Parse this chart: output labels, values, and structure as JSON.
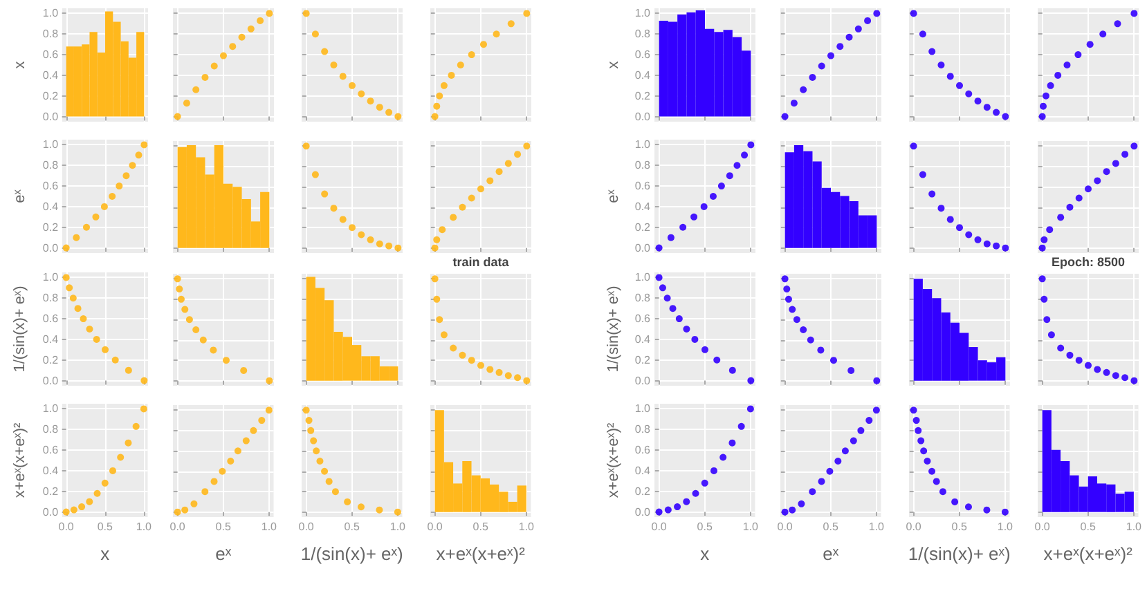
{
  "chart_data": [
    {
      "type": "histogram",
      "ylabel": "x",
      "bins": [
        0,
        0.1,
        0.2,
        0.3,
        0.4,
        0.5,
        0.6,
        0.7,
        0.8,
        0.9,
        1
      ],
      "values": [
        0.68,
        0.68,
        0.7,
        0.82,
        0.62,
        1.02,
        0.92,
        0.73,
        0.57,
        0.82
      ],
      "color": "#ffb81c",
      "xlim": [
        -0.05,
        1.05
      ],
      "ylim": [
        -0.05,
        1.05
      ],
      "xticks": [
        0,
        0.5,
        1
      ],
      "yticks": [
        {
          "value": 0,
          "label": "0.0"
        },
        {
          "value": 0.2,
          "label": "0.2"
        },
        {
          "value": 0.4,
          "label": "0.4"
        },
        {
          "value": 0.6,
          "label": "0.6"
        },
        {
          "value": 0.8,
          "label": "0.8"
        },
        {
          "value": 1,
          "label": "1.0"
        }
      ],
      "grid": true,
      "tick_labels": "y"
    },
    {
      "type": "scatter",
      "x": [
        0,
        0.1,
        0.2,
        0.3,
        0.4,
        0.5,
        0.6,
        0.7,
        0.8,
        0.9,
        1
      ],
      "values": [
        0,
        0.13,
        0.26,
        0.38,
        0.49,
        0.59,
        0.68,
        0.77,
        0.85,
        0.93,
        1
      ],
      "color": "#ffb81c",
      "marker": "circle",
      "xlim": [
        -0.05,
        1.05
      ],
      "ylim": [
        -0.05,
        1.05
      ],
      "xticks": [
        0,
        0.5,
        1
      ],
      "yticks": [
        0,
        0.2,
        0.4,
        0.6,
        0.8,
        1
      ],
      "grid": true,
      "tick_labels": false
    },
    {
      "type": "scatter",
      "x": [
        0,
        0.1,
        0.2,
        0.3,
        0.4,
        0.5,
        0.6,
        0.7,
        0.8,
        0.9,
        1
      ],
      "values": [
        1,
        0.8,
        0.63,
        0.5,
        0.39,
        0.3,
        0.22,
        0.15,
        0.09,
        0.04,
        0
      ],
      "color": "#ffb81c",
      "marker": "circle",
      "xlim": [
        -0.05,
        1.05
      ],
      "ylim": [
        -0.05,
        1.05
      ],
      "xticks": [
        0,
        0.5,
        1
      ],
      "yticks": [
        0,
        0.2,
        0.4,
        0.6,
        0.8,
        1
      ],
      "grid": true,
      "tick_labels": false
    },
    {
      "type": "scatter",
      "x": [
        0,
        0.02,
        0.05,
        0.1,
        0.18,
        0.28,
        0.4,
        0.53,
        0.67,
        0.83,
        1
      ],
      "values": [
        0,
        0.1,
        0.2,
        0.3,
        0.4,
        0.5,
        0.6,
        0.7,
        0.8,
        0.9,
        1
      ],
      "color": "#ffb81c",
      "marker": "circle",
      "xlim": [
        -0.05,
        1.05
      ],
      "ylim": [
        -0.05,
        1.05
      ],
      "xticks": [
        0,
        0.5,
        1
      ],
      "yticks": [
        0,
        0.2,
        0.4,
        0.6,
        0.8,
        1
      ],
      "grid": true,
      "tick_labels": false
    },
    {
      "type": "scatter",
      "ylabel": "eˣ",
      "x": [
        0,
        0.13,
        0.26,
        0.38,
        0.49,
        0.59,
        0.68,
        0.77,
        0.85,
        0.93,
        1
      ],
      "values": [
        0,
        0.1,
        0.2,
        0.3,
        0.4,
        0.5,
        0.6,
        0.7,
        0.8,
        0.9,
        1
      ],
      "color": "#ffb81c",
      "marker": "circle",
      "xlim": [
        -0.05,
        1.05
      ],
      "ylim": [
        -0.05,
        1.05
      ],
      "xticks": [
        0,
        0.5,
        1
      ],
      "yticks": [
        {
          "value": 0,
          "label": "0.0"
        },
        {
          "value": 0.2,
          "label": "0.2"
        },
        {
          "value": 0.4,
          "label": "0.4"
        },
        {
          "value": 0.6,
          "label": "0.6"
        },
        {
          "value": 0.8,
          "label": "0.8"
        },
        {
          "value": 1,
          "label": "1.0"
        }
      ],
      "grid": true,
      "tick_labels": "y"
    },
    {
      "type": "histogram",
      "bins": [
        0,
        0.1,
        0.2,
        0.3,
        0.4,
        0.5,
        0.6,
        0.7,
        0.8,
        0.9,
        1
      ],
      "values": [
        0.99,
        1.01,
        0.89,
        0.72,
        1.01,
        0.63,
        0.6,
        0.48,
        0.26,
        0.55
      ],
      "color": "#ffb81c",
      "xlim": [
        -0.05,
        1.05
      ],
      "ylim": [
        -0.05,
        1.05
      ],
      "xticks": [
        0,
        0.5,
        1
      ],
      "yticks": [
        0,
        0.2,
        0.4,
        0.6,
        0.8,
        1
      ],
      "grid": true,
      "tick_labels": false
    },
    {
      "type": "scatter",
      "x": [
        0,
        0.1,
        0.2,
        0.3,
        0.4,
        0.5,
        0.6,
        0.7,
        0.8,
        0.9,
        1
      ],
      "values": [
        1,
        0.72,
        0.53,
        0.39,
        0.28,
        0.2,
        0.13,
        0.08,
        0.04,
        0.02,
        0
      ],
      "color": "#ffb81c",
      "marker": "circle",
      "xlim": [
        -0.05,
        1.05
      ],
      "ylim": [
        -0.05,
        1.05
      ],
      "xticks": [
        0,
        0.5,
        1
      ],
      "yticks": [
        0,
        0.2,
        0.4,
        0.6,
        0.8,
        1
      ],
      "grid": true,
      "tick_labels": false
    },
    {
      "type": "scatter",
      "annotations": [
        "train data"
      ],
      "x": [
        0,
        0.02,
        0.08,
        0.2,
        0.3,
        0.4,
        0.5,
        0.6,
        0.7,
        0.8,
        0.9,
        1
      ],
      "values": [
        0,
        0.08,
        0.18,
        0.3,
        0.4,
        0.49,
        0.58,
        0.66,
        0.75,
        0.83,
        0.92,
        1
      ],
      "color": "#ffb81c",
      "marker": "circle",
      "xlim": [
        -0.05,
        1.05
      ],
      "ylim": [
        -0.05,
        1.05
      ],
      "xticks": [
        0,
        0.5,
        1
      ],
      "yticks": [
        0,
        0.2,
        0.4,
        0.6,
        0.8,
        1
      ],
      "grid": true,
      "tick_labels": false
    },
    {
      "type": "scatter",
      "ylabel": "1/(sin(x)+ eˣ)",
      "x": [
        1,
        0.8,
        0.63,
        0.5,
        0.39,
        0.3,
        0.22,
        0.15,
        0.09,
        0.04,
        0
      ],
      "values": [
        0,
        0.1,
        0.2,
        0.3,
        0.4,
        0.5,
        0.6,
        0.7,
        0.8,
        0.9,
        1
      ],
      "color": "#ffb81c",
      "marker": "circle",
      "xlim": [
        -0.05,
        1.05
      ],
      "ylim": [
        -0.05,
        1.05
      ],
      "xticks": [
        0,
        0.5,
        1
      ],
      "yticks": [
        {
          "value": 0,
          "label": "0.0"
        },
        {
          "value": 0.2,
          "label": "0.2"
        },
        {
          "value": 0.4,
          "label": "0.4"
        },
        {
          "value": 0.6,
          "label": "0.6"
        },
        {
          "value": 0.8,
          "label": "0.8"
        },
        {
          "value": 1,
          "label": "1.0"
        }
      ],
      "grid": true,
      "tick_labels": "y"
    },
    {
      "type": "scatter",
      "x": [
        1,
        0.72,
        0.53,
        0.39,
        0.28,
        0.2,
        0.13,
        0.08,
        0.04,
        0.02,
        0
      ],
      "values": [
        0,
        0.1,
        0.2,
        0.3,
        0.4,
        0.5,
        0.6,
        0.7,
        0.8,
        0.9,
        1
      ],
      "color": "#ffb81c",
      "marker": "circle",
      "xlim": [
        -0.05,
        1.05
      ],
      "ylim": [
        -0.05,
        1.05
      ],
      "xticks": [
        0,
        0.5,
        1
      ],
      "yticks": [
        0,
        0.2,
        0.4,
        0.6,
        0.8,
        1
      ],
      "grid": true,
      "tick_labels": false
    },
    {
      "type": "histogram",
      "bins": [
        0,
        0.1,
        0.2,
        0.3,
        0.4,
        0.5,
        0.6,
        0.7,
        0.8,
        0.9,
        1
      ],
      "values": [
        1.02,
        0.91,
        0.79,
        0.48,
        0.43,
        0.35,
        0.24,
        0.24,
        0.14,
        0.14
      ],
      "color": "#ffb81c",
      "xlim": [
        -0.05,
        1.05
      ],
      "ylim": [
        -0.05,
        1.05
      ],
      "xticks": [
        0,
        0.5,
        1
      ],
      "yticks": [
        0,
        0.2,
        0.4,
        0.6,
        0.8,
        1
      ],
      "grid": true,
      "tick_labels": false
    },
    {
      "type": "scatter",
      "x": [
        0,
        0.02,
        0.05,
        0.1,
        0.2,
        0.3,
        0.4,
        0.5,
        0.6,
        0.7,
        0.8,
        0.9,
        1
      ],
      "values": [
        1,
        0.8,
        0.6,
        0.45,
        0.32,
        0.25,
        0.2,
        0.15,
        0.11,
        0.08,
        0.05,
        0.03,
        0
      ],
      "color": "#ffb81c",
      "marker": "circle",
      "xlim": [
        -0.05,
        1.05
      ],
      "ylim": [
        -0.05,
        1.05
      ],
      "xticks": [
        0,
        0.5,
        1
      ],
      "yticks": [
        0,
        0.2,
        0.4,
        0.6,
        0.8,
        1
      ],
      "grid": true,
      "tick_labels": false
    },
    {
      "type": "scatter",
      "xlabel": "x",
      "ylabel": "x+eˣ(x+eˣ)²",
      "x": [
        0,
        0.1,
        0.2,
        0.3,
        0.4,
        0.5,
        0.6,
        0.7,
        0.8,
        0.9,
        1
      ],
      "values": [
        0,
        0.02,
        0.05,
        0.1,
        0.18,
        0.28,
        0.4,
        0.53,
        0.67,
        0.83,
        1
      ],
      "color": "#ffb81c",
      "marker": "circle",
      "xlim": [
        -0.05,
        1.05
      ],
      "ylim": [
        -0.05,
        1.05
      ],
      "xticks": [
        {
          "value": 0,
          "label": "0.0"
        },
        {
          "value": 0.5,
          "label": "0.5"
        },
        {
          "value": 1,
          "label": "1.0"
        }
      ],
      "yticks": [
        {
          "value": 0,
          "label": "0.0"
        },
        {
          "value": 0.2,
          "label": "0.2"
        },
        {
          "value": 0.4,
          "label": "0.4"
        },
        {
          "value": 0.6,
          "label": "0.6"
        },
        {
          "value": 0.8,
          "label": "0.8"
        },
        {
          "value": 1,
          "label": "1.0"
        }
      ],
      "grid": true
    },
    {
      "type": "scatter",
      "xlabel": "eˣ",
      "x": [
        0,
        0.08,
        0.18,
        0.3,
        0.4,
        0.49,
        0.58,
        0.66,
        0.75,
        0.83,
        0.92,
        1
      ],
      "values": [
        0,
        0.02,
        0.08,
        0.2,
        0.3,
        0.4,
        0.5,
        0.6,
        0.7,
        0.8,
        0.9,
        1
      ],
      "color": "#ffb81c",
      "marker": "circle",
      "xlim": [
        -0.05,
        1.05
      ],
      "ylim": [
        -0.05,
        1.05
      ],
      "xticks": [
        {
          "value": 0,
          "label": "0.0"
        },
        {
          "value": 0.5,
          "label": "0.5"
        },
        {
          "value": 1,
          "label": "1.0"
        }
      ],
      "yticks": [
        0,
        0.2,
        0.4,
        0.6,
        0.8,
        1
      ],
      "grid": true,
      "tick_labels": "x"
    },
    {
      "type": "scatter",
      "xlabel": "1/(sin(x)+ eˣ)",
      "x": [
        1,
        0.8,
        0.6,
        0.45,
        0.32,
        0.25,
        0.2,
        0.15,
        0.11,
        0.08,
        0.05,
        0.03,
        0
      ],
      "values": [
        0,
        0.02,
        0.05,
        0.1,
        0.2,
        0.3,
        0.4,
        0.5,
        0.6,
        0.7,
        0.8,
        0.9,
        1
      ],
      "color": "#ffb81c",
      "marker": "circle",
      "xlim": [
        -0.05,
        1.05
      ],
      "ylim": [
        -0.05,
        1.05
      ],
      "xticks": [
        {
          "value": 0,
          "label": "0.0"
        },
        {
          "value": 0.5,
          "label": "0.5"
        },
        {
          "value": 1,
          "label": "1.0"
        }
      ],
      "yticks": [
        0,
        0.2,
        0.4,
        0.6,
        0.8,
        1
      ],
      "grid": true,
      "tick_labels": "x"
    },
    {
      "type": "histogram",
      "xlabel": "x+eˣ(x+eˣ)²",
      "bins": [
        0,
        0.1,
        0.2,
        0.3,
        0.4,
        0.5,
        0.6,
        0.7,
        0.8,
        0.9,
        1
      ],
      "values": [
        1,
        0.49,
        0.28,
        0.5,
        0.36,
        0.33,
        0.27,
        0.2,
        0.1,
        0.26
      ],
      "color": "#ffb81c",
      "xlim": [
        -0.05,
        1.05
      ],
      "ylim": [
        -0.05,
        1.05
      ],
      "xticks": [
        {
          "value": 0,
          "label": "0.0"
        },
        {
          "value": 0.5,
          "label": "0.5"
        },
        {
          "value": 1,
          "label": "1.0"
        }
      ],
      "yticks": [
        0,
        0.2,
        0.4,
        0.6,
        0.8,
        1
      ],
      "grid": true,
      "tick_labels": "x"
    },
    {
      "type": "histogram",
      "ylabel": "x",
      "bins": [
        0,
        0.1,
        0.2,
        0.3,
        0.4,
        0.5,
        0.6,
        0.7,
        0.8,
        0.9,
        1
      ],
      "values": [
        0.93,
        0.92,
        0.99,
        1.01,
        1.03,
        0.85,
        0.82,
        0.84,
        0.77,
        0.64
      ],
      "color": "#3300ff",
      "xlim": [
        -0.05,
        1.05
      ],
      "ylim": [
        -0.05,
        1.05
      ],
      "xticks": [
        0,
        0.5,
        1
      ],
      "yticks": [
        {
          "value": 0,
          "label": "0.0"
        },
        {
          "value": 0.2,
          "label": "0.2"
        },
        {
          "value": 0.4,
          "label": "0.4"
        },
        {
          "value": 0.6,
          "label": "0.6"
        },
        {
          "value": 0.8,
          "label": "0.8"
        },
        {
          "value": 1,
          "label": "1.0"
        }
      ],
      "grid": true,
      "tick_labels": "y"
    },
    {
      "type": "scatter",
      "x": [
        0,
        0.1,
        0.2,
        0.3,
        0.4,
        0.5,
        0.6,
        0.7,
        0.8,
        0.9,
        1
      ],
      "values": [
        0,
        0.13,
        0.26,
        0.38,
        0.49,
        0.59,
        0.68,
        0.77,
        0.85,
        0.93,
        1
      ],
      "color": "#3300ff",
      "marker": "circle",
      "xlim": [
        -0.05,
        1.05
      ],
      "ylim": [
        -0.05,
        1.05
      ],
      "xticks": [
        0,
        0.5,
        1
      ],
      "yticks": [
        0,
        0.2,
        0.4,
        0.6,
        0.8,
        1
      ],
      "grid": true,
      "tick_labels": false
    },
    {
      "type": "scatter",
      "x": [
        0,
        0.1,
        0.2,
        0.3,
        0.4,
        0.5,
        0.6,
        0.7,
        0.8,
        0.9,
        1
      ],
      "values": [
        1,
        0.8,
        0.63,
        0.5,
        0.39,
        0.3,
        0.22,
        0.15,
        0.09,
        0.04,
        0
      ],
      "color": "#3300ff",
      "marker": "circle",
      "xlim": [
        -0.05,
        1.05
      ],
      "ylim": [
        -0.05,
        1.05
      ],
      "xticks": [
        0,
        0.5,
        1
      ],
      "yticks": [
        0,
        0.2,
        0.4,
        0.6,
        0.8,
        1
      ],
      "grid": true,
      "tick_labels": false
    },
    {
      "type": "scatter",
      "x": [
        0,
        0.01,
        0.04,
        0.09,
        0.17,
        0.27,
        0.39,
        0.52,
        0.66,
        0.82,
        1
      ],
      "values": [
        0,
        0.1,
        0.2,
        0.3,
        0.4,
        0.5,
        0.6,
        0.7,
        0.8,
        0.9,
        1
      ],
      "color": "#3300ff",
      "marker": "circle",
      "xlim": [
        -0.05,
        1.05
      ],
      "ylim": [
        -0.05,
        1.05
      ],
      "xticks": [
        0,
        0.5,
        1
      ],
      "yticks": [
        0,
        0.2,
        0.4,
        0.6,
        0.8,
        1
      ],
      "grid": true,
      "tick_labels": false
    },
    {
      "type": "scatter",
      "ylabel": "eˣ",
      "x": [
        0,
        0.13,
        0.26,
        0.38,
        0.49,
        0.59,
        0.68,
        0.77,
        0.85,
        0.93,
        1
      ],
      "values": [
        0,
        0.1,
        0.2,
        0.3,
        0.4,
        0.5,
        0.6,
        0.7,
        0.8,
        0.9,
        1
      ],
      "color": "#3300ff",
      "marker": "circle",
      "xlim": [
        -0.05,
        1.05
      ],
      "ylim": [
        -0.05,
        1.05
      ],
      "xticks": [
        0,
        0.5,
        1
      ],
      "yticks": [
        {
          "value": 0,
          "label": "0.0"
        },
        {
          "value": 0.2,
          "label": "0.2"
        },
        {
          "value": 0.4,
          "label": "0.4"
        },
        {
          "value": 0.6,
          "label": "0.6"
        },
        {
          "value": 0.8,
          "label": "0.8"
        },
        {
          "value": 1,
          "label": "1.0"
        }
      ],
      "grid": true,
      "tick_labels": "y"
    },
    {
      "type": "histogram",
      "bins": [
        0,
        0.1,
        0.2,
        0.3,
        0.4,
        0.5,
        0.6,
        0.7,
        0.8,
        0.9,
        1
      ],
      "values": [
        0.94,
        1.01,
        0.95,
        0.85,
        0.59,
        0.55,
        0.51,
        0.46,
        0.32,
        0.32
      ],
      "color": "#3300ff",
      "xlim": [
        -0.05,
        1.05
      ],
      "ylim": [
        -0.05,
        1.05
      ],
      "xticks": [
        0,
        0.5,
        1
      ],
      "yticks": [
        0,
        0.2,
        0.4,
        0.6,
        0.8,
        1
      ],
      "grid": true,
      "tick_labels": false
    },
    {
      "type": "scatter",
      "x": [
        0,
        0.1,
        0.2,
        0.3,
        0.4,
        0.5,
        0.6,
        0.7,
        0.8,
        0.9,
        1
      ],
      "values": [
        1,
        0.72,
        0.53,
        0.39,
        0.28,
        0.2,
        0.13,
        0.08,
        0.04,
        0.02,
        0
      ],
      "color": "#3300ff",
      "marker": "circle",
      "xlim": [
        -0.05,
        1.05
      ],
      "ylim": [
        -0.05,
        1.05
      ],
      "xticks": [
        0,
        0.5,
        1
      ],
      "yticks": [
        0,
        0.2,
        0.4,
        0.6,
        0.8,
        1
      ],
      "grid": true,
      "tick_labels": false
    },
    {
      "type": "scatter",
      "annotations": [
        "Epoch: 8500"
      ],
      "x": [
        0,
        0.02,
        0.08,
        0.2,
        0.3,
        0.4,
        0.5,
        0.6,
        0.7,
        0.8,
        0.9,
        1
      ],
      "values": [
        0,
        0.08,
        0.18,
        0.3,
        0.4,
        0.49,
        0.58,
        0.66,
        0.75,
        0.83,
        0.92,
        1
      ],
      "color": "#3300ff",
      "marker": "circle",
      "xlim": [
        -0.05,
        1.05
      ],
      "ylim": [
        -0.05,
        1.05
      ],
      "xticks": [
        0,
        0.5,
        1
      ],
      "yticks": [
        0,
        0.2,
        0.4,
        0.6,
        0.8,
        1
      ],
      "grid": true,
      "tick_labels": false
    },
    {
      "type": "scatter",
      "ylabel": "1/(sin(x)+ eˣ)",
      "x": [
        1,
        0.8,
        0.63,
        0.5,
        0.39,
        0.3,
        0.22,
        0.15,
        0.09,
        0.04,
        0
      ],
      "values": [
        0,
        0.1,
        0.2,
        0.3,
        0.4,
        0.5,
        0.6,
        0.7,
        0.8,
        0.9,
        1
      ],
      "color": "#3300ff",
      "marker": "circle",
      "xlim": [
        -0.05,
        1.05
      ],
      "ylim": [
        -0.05,
        1.05
      ],
      "xticks": [
        0,
        0.5,
        1
      ],
      "yticks": [
        {
          "value": 0,
          "label": "0.0"
        },
        {
          "value": 0.2,
          "label": "0.2"
        },
        {
          "value": 0.4,
          "label": "0.4"
        },
        {
          "value": 0.6,
          "label": "0.6"
        },
        {
          "value": 0.8,
          "label": "0.8"
        },
        {
          "value": 1,
          "label": "1.0"
        }
      ],
      "grid": true,
      "tick_labels": "y"
    },
    {
      "type": "scatter",
      "x": [
        1,
        0.72,
        0.53,
        0.39,
        0.28,
        0.2,
        0.13,
        0.08,
        0.04,
        0.02,
        0
      ],
      "values": [
        0,
        0.1,
        0.2,
        0.3,
        0.4,
        0.5,
        0.6,
        0.7,
        0.8,
        0.9,
        1
      ],
      "color": "#3300ff",
      "marker": "circle",
      "xlim": [
        -0.05,
        1.05
      ],
      "ylim": [
        -0.05,
        1.05
      ],
      "xticks": [
        0,
        0.5,
        1
      ],
      "yticks": [
        0,
        0.2,
        0.4,
        0.6,
        0.8,
        1
      ],
      "grid": true,
      "tick_labels": false
    },
    {
      "type": "histogram",
      "bins": [
        0,
        0.1,
        0.2,
        0.3,
        0.4,
        0.5,
        0.6,
        0.7,
        0.8,
        0.9,
        1
      ],
      "values": [
        1,
        0.9,
        0.81,
        0.67,
        0.57,
        0.47,
        0.33,
        0.2,
        0.18,
        0.23
      ],
      "color": "#3300ff",
      "xlim": [
        -0.05,
        1.05
      ],
      "ylim": [
        -0.05,
        1.05
      ],
      "xticks": [
        0,
        0.5,
        1
      ],
      "yticks": [
        0,
        0.2,
        0.4,
        0.6,
        0.8,
        1
      ],
      "grid": true,
      "tick_labels": false
    },
    {
      "type": "scatter",
      "x": [
        0,
        0.02,
        0.05,
        0.1,
        0.2,
        0.3,
        0.4,
        0.5,
        0.6,
        0.7,
        0.8,
        0.9,
        1
      ],
      "values": [
        1,
        0.8,
        0.6,
        0.45,
        0.32,
        0.25,
        0.2,
        0.15,
        0.11,
        0.08,
        0.05,
        0.03,
        0
      ],
      "color": "#3300ff",
      "marker": "circle",
      "xlim": [
        -0.05,
        1.05
      ],
      "ylim": [
        -0.05,
        1.05
      ],
      "xticks": [
        0,
        0.5,
        1
      ],
      "yticks": [
        0,
        0.2,
        0.4,
        0.6,
        0.8,
        1
      ],
      "grid": true,
      "tick_labels": false
    },
    {
      "type": "scatter",
      "xlabel": "x",
      "ylabel": "x+eˣ(x+eˣ)²",
      "x": [
        0,
        0.1,
        0.2,
        0.3,
        0.4,
        0.5,
        0.6,
        0.7,
        0.8,
        0.9,
        1
      ],
      "values": [
        0,
        0.02,
        0.05,
        0.1,
        0.18,
        0.28,
        0.4,
        0.53,
        0.67,
        0.83,
        1
      ],
      "color": "#3300ff",
      "marker": "circle",
      "xlim": [
        -0.05,
        1.05
      ],
      "ylim": [
        -0.05,
        1.05
      ],
      "xticks": [
        {
          "value": 0,
          "label": "0.0"
        },
        {
          "value": 0.5,
          "label": "0.5"
        },
        {
          "value": 1,
          "label": "1.0"
        }
      ],
      "yticks": [
        {
          "value": 0,
          "label": "0.0"
        },
        {
          "value": 0.2,
          "label": "0.2"
        },
        {
          "value": 0.4,
          "label": "0.4"
        },
        {
          "value": 0.6,
          "label": "0.6"
        },
        {
          "value": 0.8,
          "label": "0.8"
        },
        {
          "value": 1,
          "label": "1.0"
        }
      ],
      "grid": true
    },
    {
      "type": "scatter",
      "xlabel": "eˣ",
      "x": [
        0,
        0.08,
        0.18,
        0.3,
        0.4,
        0.49,
        0.58,
        0.66,
        0.75,
        0.83,
        0.92,
        1
      ],
      "values": [
        0,
        0.02,
        0.08,
        0.2,
        0.3,
        0.4,
        0.5,
        0.6,
        0.7,
        0.8,
        0.9,
        1
      ],
      "color": "#3300ff",
      "marker": "circle",
      "xlim": [
        -0.05,
        1.05
      ],
      "ylim": [
        -0.05,
        1.05
      ],
      "xticks": [
        {
          "value": 0,
          "label": "0.0"
        },
        {
          "value": 0.5,
          "label": "0.5"
        },
        {
          "value": 1,
          "label": "1.0"
        }
      ],
      "yticks": [
        0,
        0.2,
        0.4,
        0.6,
        0.8,
        1
      ],
      "grid": true,
      "tick_labels": "x"
    },
    {
      "type": "scatter",
      "xlabel": "1/(sin(x)+ eˣ)",
      "x": [
        1,
        0.8,
        0.6,
        0.45,
        0.32,
        0.25,
        0.2,
        0.15,
        0.11,
        0.08,
        0.05,
        0.03,
        0
      ],
      "values": [
        0,
        0.02,
        0.05,
        0.1,
        0.2,
        0.3,
        0.4,
        0.5,
        0.6,
        0.7,
        0.8,
        0.9,
        1
      ],
      "color": "#3300ff",
      "marker": "circle",
      "xlim": [
        -0.05,
        1.05
      ],
      "ylim": [
        -0.05,
        1.05
      ],
      "xticks": [
        {
          "value": 0,
          "label": "0.0"
        },
        {
          "value": 0.5,
          "label": "0.5"
        },
        {
          "value": 1,
          "label": "1.0"
        }
      ],
      "yticks": [
        0,
        0.2,
        0.4,
        0.6,
        0.8,
        1
      ],
      "grid": true,
      "tick_labels": "x"
    },
    {
      "type": "histogram",
      "xlabel": "x+eˣ(x+eˣ)²",
      "bins": [
        0,
        0.1,
        0.2,
        0.3,
        0.4,
        0.5,
        0.6,
        0.7,
        0.8,
        0.9,
        1
      ],
      "values": [
        1,
        0.61,
        0.5,
        0.36,
        0.25,
        0.35,
        0.28,
        0.27,
        0.18,
        0.2
      ],
      "color": "#3300ff",
      "xlim": [
        -0.05,
        1.05
      ],
      "ylim": [
        -0.05,
        1.05
      ],
      "xticks": [
        {
          "value": 0,
          "label": "0.0"
        },
        {
          "value": 0.5,
          "label": "0.5"
        },
        {
          "value": 1,
          "label": "1.0"
        }
      ],
      "yticks": [
        0,
        0.2,
        0.4,
        0.6,
        0.8,
        1
      ],
      "grid": true,
      "tick_labels": "x"
    }
  ]
}
